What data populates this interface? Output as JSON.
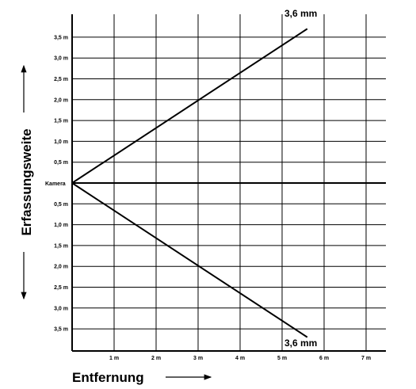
{
  "diagram": {
    "y_axis_title": "Erfassungsweite",
    "x_axis_title": "Entfernung",
    "camera_label": "Kamera",
    "lens_label_upper": "3,6 mm",
    "lens_label_lower": "3,6 mm",
    "x_ticks": [
      "1 m",
      "2 m",
      "3 m",
      "4 m",
      "5 m",
      "6 m",
      "7 m"
    ],
    "y_ticks_upper": [
      "3,5 m",
      "3,0 m",
      "2,5 m",
      "2,0 m",
      "1,5 m",
      "1,0 m",
      "0,5 m"
    ],
    "y_ticks_lower": [
      "0,5 m",
      "1,0 m",
      "1,5 m",
      "2,0 m",
      "2,5 m",
      "3,0 m",
      "3,5 m"
    ],
    "coverage": {
      "lens": "3,6 mm",
      "end_distance_m": 5.6,
      "half_width_at_end_m": 3.7
    }
  }
}
